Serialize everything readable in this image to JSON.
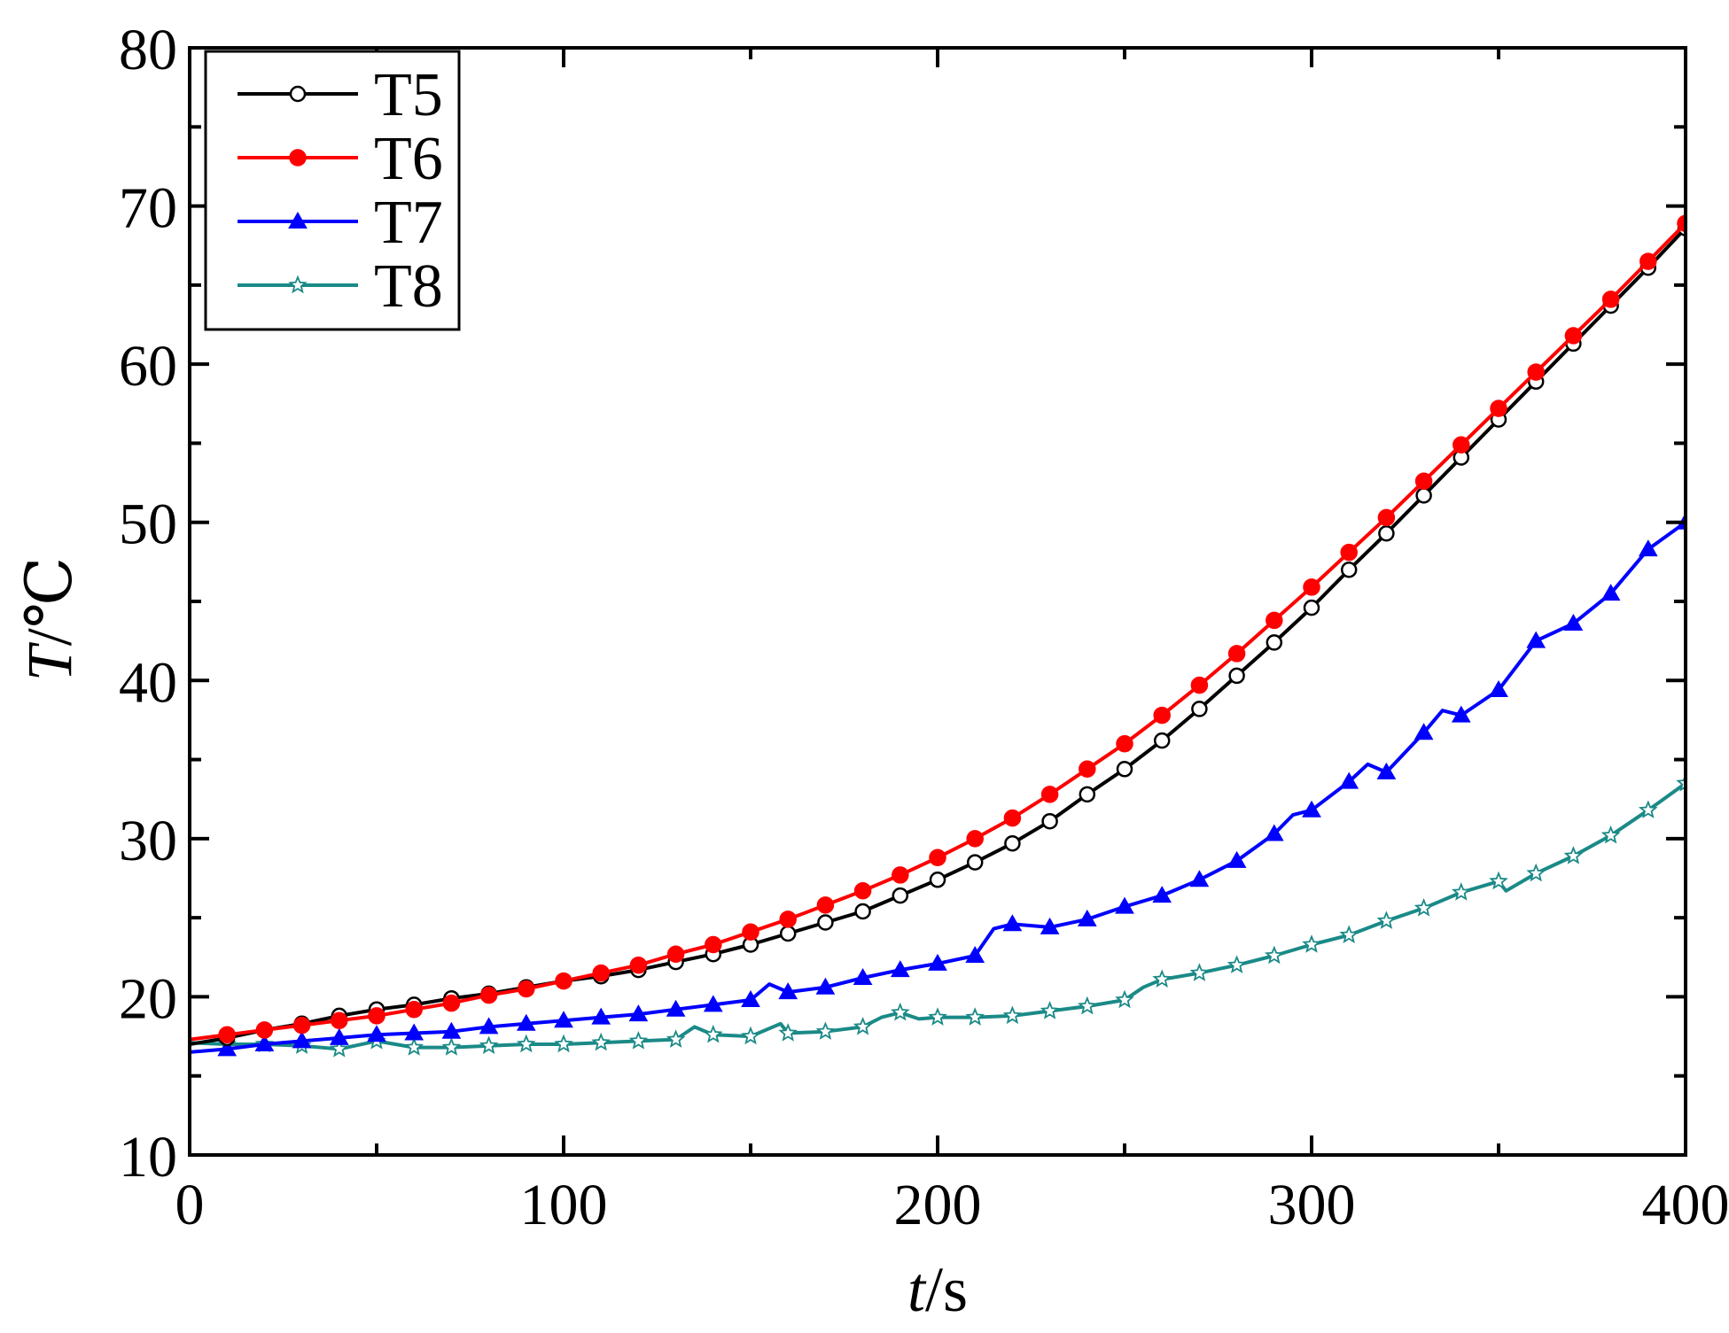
{
  "chart_data": {
    "type": "line",
    "title": "",
    "xlabel": {
      "italic": "t",
      "rest": "/s"
    },
    "ylabel": {
      "italic": "T",
      "rest": "/℃"
    },
    "xlim": [
      0,
      400
    ],
    "ylim": [
      10,
      80
    ],
    "xticks": [
      0,
      100,
      200,
      300,
      400
    ],
    "yticks": [
      10,
      20,
      30,
      40,
      50,
      60,
      70,
      80
    ],
    "grid": false,
    "legend_position": "top-left",
    "series": [
      {
        "name": "T5",
        "color": "#000000",
        "marker": "circle-open",
        "x": [
          0,
          10,
          20,
          30,
          40,
          50,
          60,
          70,
          80,
          90,
          100,
          110,
          120,
          130,
          140,
          150,
          160,
          170,
          180,
          190,
          200,
          210,
          220,
          230,
          240,
          250,
          260,
          270,
          280,
          290,
          300,
          310,
          320,
          330,
          340,
          350,
          360,
          370,
          380,
          390,
          400
        ],
        "y": [
          17.0,
          17.4,
          17.9,
          18.3,
          18.8,
          19.2,
          19.5,
          19.9,
          20.2,
          20.6,
          21.0,
          21.3,
          21.7,
          22.2,
          22.7,
          23.3,
          24.0,
          24.7,
          25.4,
          26.4,
          27.4,
          28.5,
          29.7,
          31.1,
          32.8,
          34.4,
          36.2,
          38.2,
          40.3,
          42.4,
          44.6,
          47.0,
          49.3,
          51.7,
          54.1,
          56.5,
          58.9,
          61.3,
          63.7,
          66.1,
          68.6
        ]
      },
      {
        "name": "T6",
        "color": "#ff0000",
        "marker": "circle-filled",
        "x": [
          0,
          10,
          20,
          30,
          40,
          50,
          60,
          70,
          80,
          90,
          100,
          110,
          120,
          130,
          140,
          150,
          160,
          170,
          180,
          190,
          200,
          210,
          220,
          230,
          240,
          250,
          260,
          270,
          280,
          290,
          300,
          310,
          320,
          330,
          340,
          350,
          360,
          370,
          380,
          390,
          400
        ],
        "y": [
          17.3,
          17.6,
          17.9,
          18.2,
          18.5,
          18.8,
          19.2,
          19.6,
          20.1,
          20.5,
          21.0,
          21.5,
          22.0,
          22.7,
          23.3,
          24.1,
          24.9,
          25.8,
          26.7,
          27.7,
          28.8,
          30.0,
          31.3,
          32.8,
          34.4,
          36.0,
          37.8,
          39.7,
          41.7,
          43.8,
          45.9,
          48.1,
          50.3,
          52.6,
          54.9,
          57.2,
          59.5,
          61.8,
          64.1,
          66.5,
          68.9
        ]
      },
      {
        "name": "T7",
        "color": "#0000ff",
        "marker": "triangle-filled",
        "x": [
          0,
          10,
          20,
          30,
          40,
          50,
          60,
          70,
          80,
          90,
          100,
          110,
          120,
          130,
          140,
          150,
          155,
          160,
          170,
          180,
          190,
          200,
          210,
          215,
          220,
          230,
          240,
          250,
          260,
          270,
          280,
          290,
          295,
          300,
          310,
          315,
          320,
          330,
          335,
          340,
          350,
          360,
          370,
          380,
          390,
          400
        ],
        "y": [
          16.5,
          16.7,
          17.0,
          17.2,
          17.4,
          17.6,
          17.7,
          17.8,
          18.1,
          18.3,
          18.5,
          18.7,
          18.9,
          19.2,
          19.5,
          19.8,
          20.8,
          20.3,
          20.6,
          21.2,
          21.7,
          22.1,
          22.6,
          24.3,
          24.6,
          24.4,
          24.9,
          25.7,
          26.4,
          27.4,
          28.6,
          30.3,
          31.5,
          31.8,
          33.6,
          34.7,
          34.2,
          36.7,
          38.1,
          37.8,
          39.4,
          42.5,
          43.6,
          45.5,
          48.3,
          50.0
        ]
      },
      {
        "name": "T8",
        "color": "#1a8a87",
        "marker": "star-open",
        "x": [
          0,
          10,
          20,
          30,
          40,
          50,
          60,
          70,
          80,
          90,
          100,
          110,
          120,
          130,
          135,
          140,
          150,
          158,
          160,
          170,
          180,
          185,
          190,
          195,
          200,
          210,
          220,
          230,
          240,
          250,
          255,
          260,
          270,
          280,
          290,
          300,
          310,
          320,
          330,
          340,
          350,
          352,
          360,
          370,
          380,
          390,
          400
        ],
        "y": [
          17.1,
          17.0,
          17.0,
          16.9,
          16.7,
          17.2,
          16.8,
          16.8,
          16.9,
          17.0,
          17.0,
          17.1,
          17.2,
          17.3,
          18.1,
          17.6,
          17.5,
          18.3,
          17.7,
          17.8,
          18.1,
          18.7,
          19.0,
          18.6,
          18.7,
          18.7,
          18.8,
          19.1,
          19.4,
          19.8,
          20.6,
          21.1,
          21.5,
          22.0,
          22.6,
          23.3,
          23.9,
          24.8,
          25.6,
          26.6,
          27.3,
          26.7,
          27.8,
          28.9,
          30.2,
          31.8,
          33.5
        ]
      }
    ]
  }
}
